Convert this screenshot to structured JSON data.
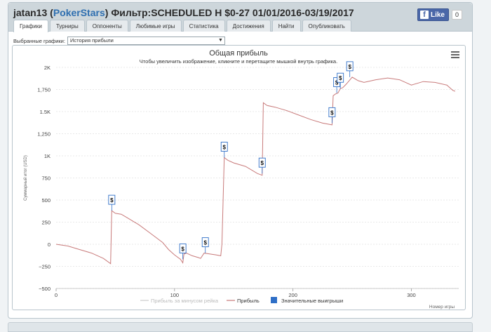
{
  "header": {
    "user": "jatan13",
    "site": "PokerStars",
    "filter_label": "Фильтр:",
    "filter_value": "SCHEDULED H $0-27 01/01/2016-03/19/2017",
    "like_label": "Like",
    "like_count": "0"
  },
  "tabs": [
    {
      "label": "Графики",
      "active": true
    },
    {
      "label": "Турниры"
    },
    {
      "label": "Оппоненты"
    },
    {
      "label": "Любимые игры"
    },
    {
      "label": "Статистика"
    },
    {
      "label": "Достижения"
    },
    {
      "label": "Найти"
    },
    {
      "label": "Опубликовать"
    }
  ],
  "chart_selector": {
    "label": "Выбранные графики:",
    "value": "История прибыли"
  },
  "icons": {
    "menu": "hamburger-menu-icon",
    "marker": "dollar-marker-icon"
  },
  "colors": {
    "profit_line": "#c87a7a",
    "rake_line": "#cccccc",
    "big_wins": "#2f6fc7"
  },
  "chart_data": {
    "type": "line",
    "title": "Общая прибыль",
    "subtitle": "Чтобы увеличить изображение, кликните и перетащите мышкой внутрь графика.",
    "xlabel": "Номер игры",
    "ylabel": "Суммарный итог (USD)",
    "xlim": [
      0,
      340
    ],
    "ylim": [
      -500,
      2000
    ],
    "x_ticks": [
      0,
      100,
      200,
      300
    ],
    "x_tick_labels": [
      "0",
      "100",
      "200",
      "300"
    ],
    "y_ticks": [
      -500,
      -250,
      0,
      250,
      500,
      750,
      1000,
      1250,
      1500,
      1750,
      2000
    ],
    "y_tick_labels": [
      "−500",
      "−250",
      "0",
      "250",
      "500",
      "750",
      "1K",
      "1,250",
      "1.5K",
      "1,750",
      "2K"
    ],
    "grid": true,
    "legend_position": "bottom",
    "legend": [
      {
        "name": "Прибыль за минусом рейка",
        "kind": "line",
        "color": "#cccccc"
      },
      {
        "name": "Прибыль",
        "kind": "line",
        "color": "#c87a7a"
      },
      {
        "name": "Значительные выигрыши",
        "kind": "square",
        "color": "#2f6fc7"
      }
    ],
    "series": [
      {
        "name": "Прибыль",
        "x": [
          0,
          10,
          20,
          30,
          40,
          46,
          47,
          50,
          55,
          60,
          70,
          80,
          90,
          95,
          100,
          105,
          107,
          108,
          110,
          115,
          120,
          122,
          125,
          130,
          135,
          139,
          140,
          142,
          145,
          150,
          160,
          170,
          174,
          175,
          178,
          185,
          195,
          205,
          215,
          225,
          233,
          234,
          236,
          238,
          240,
          242,
          245,
          250,
          255,
          260,
          270,
          280,
          290,
          300,
          310,
          320,
          330,
          335,
          337
        ],
        "y": [
          0,
          -20,
          -60,
          -100,
          -160,
          -220,
          380,
          350,
          340,
          300,
          220,
          120,
          20,
          -60,
          -120,
          -170,
          -210,
          -110,
          -100,
          -130,
          -150,
          -160,
          -100,
          -110,
          -120,
          -130,
          0,
          980,
          950,
          920,
          880,
          800,
          780,
          1600,
          1570,
          1550,
          1510,
          1460,
          1410,
          1370,
          1350,
          1680,
          1700,
          1710,
          1760,
          1770,
          1810,
          1890,
          1850,
          1830,
          1860,
          1880,
          1860,
          1800,
          1840,
          1830,
          1800,
          1740,
          1730
        ]
      }
    ],
    "markers": {
      "label": "$",
      "x": [
        47,
        107,
        126,
        142,
        174,
        233,
        237,
        240,
        248
      ]
    }
  },
  "footer": {}
}
